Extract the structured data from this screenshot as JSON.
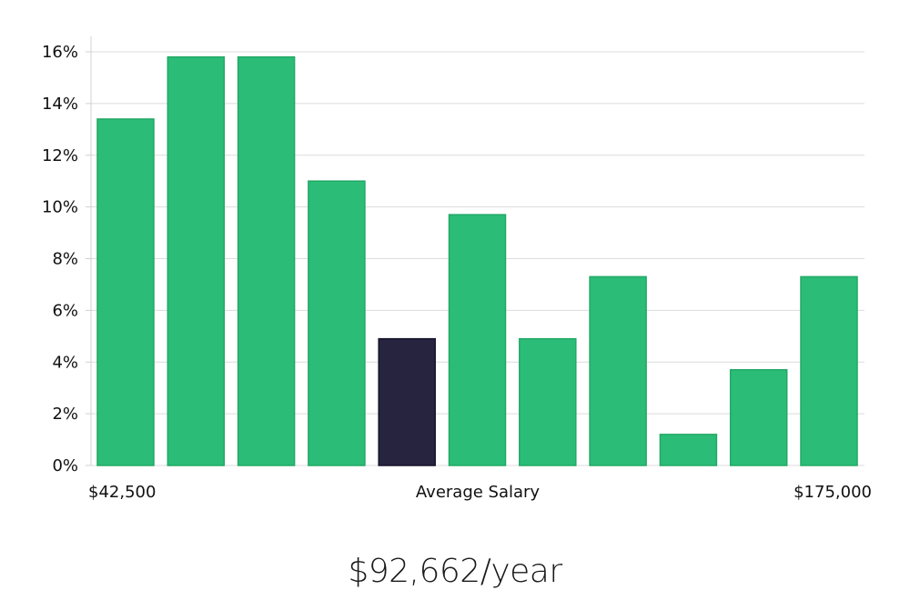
{
  "chart_data": {
    "type": "bar",
    "values": [
      13.4,
      15.8,
      15.8,
      11.0,
      4.9,
      9.7,
      4.9,
      7.3,
      1.2,
      3.7,
      7.3
    ],
    "highlight_index": 4,
    "ylim": [
      0,
      16
    ],
    "yticks": [
      "0%",
      "2%",
      "4%",
      "6%",
      "8%",
      "10%",
      "12%",
      "14%",
      "16%"
    ],
    "x_start_label": "$42,500",
    "xlabel": "Average Salary",
    "x_end_label": "$175,000",
    "grid": true,
    "colors": {
      "bar": "#2bbd77",
      "highlight": "#27243f"
    }
  },
  "average_salary": "$92,662/year"
}
